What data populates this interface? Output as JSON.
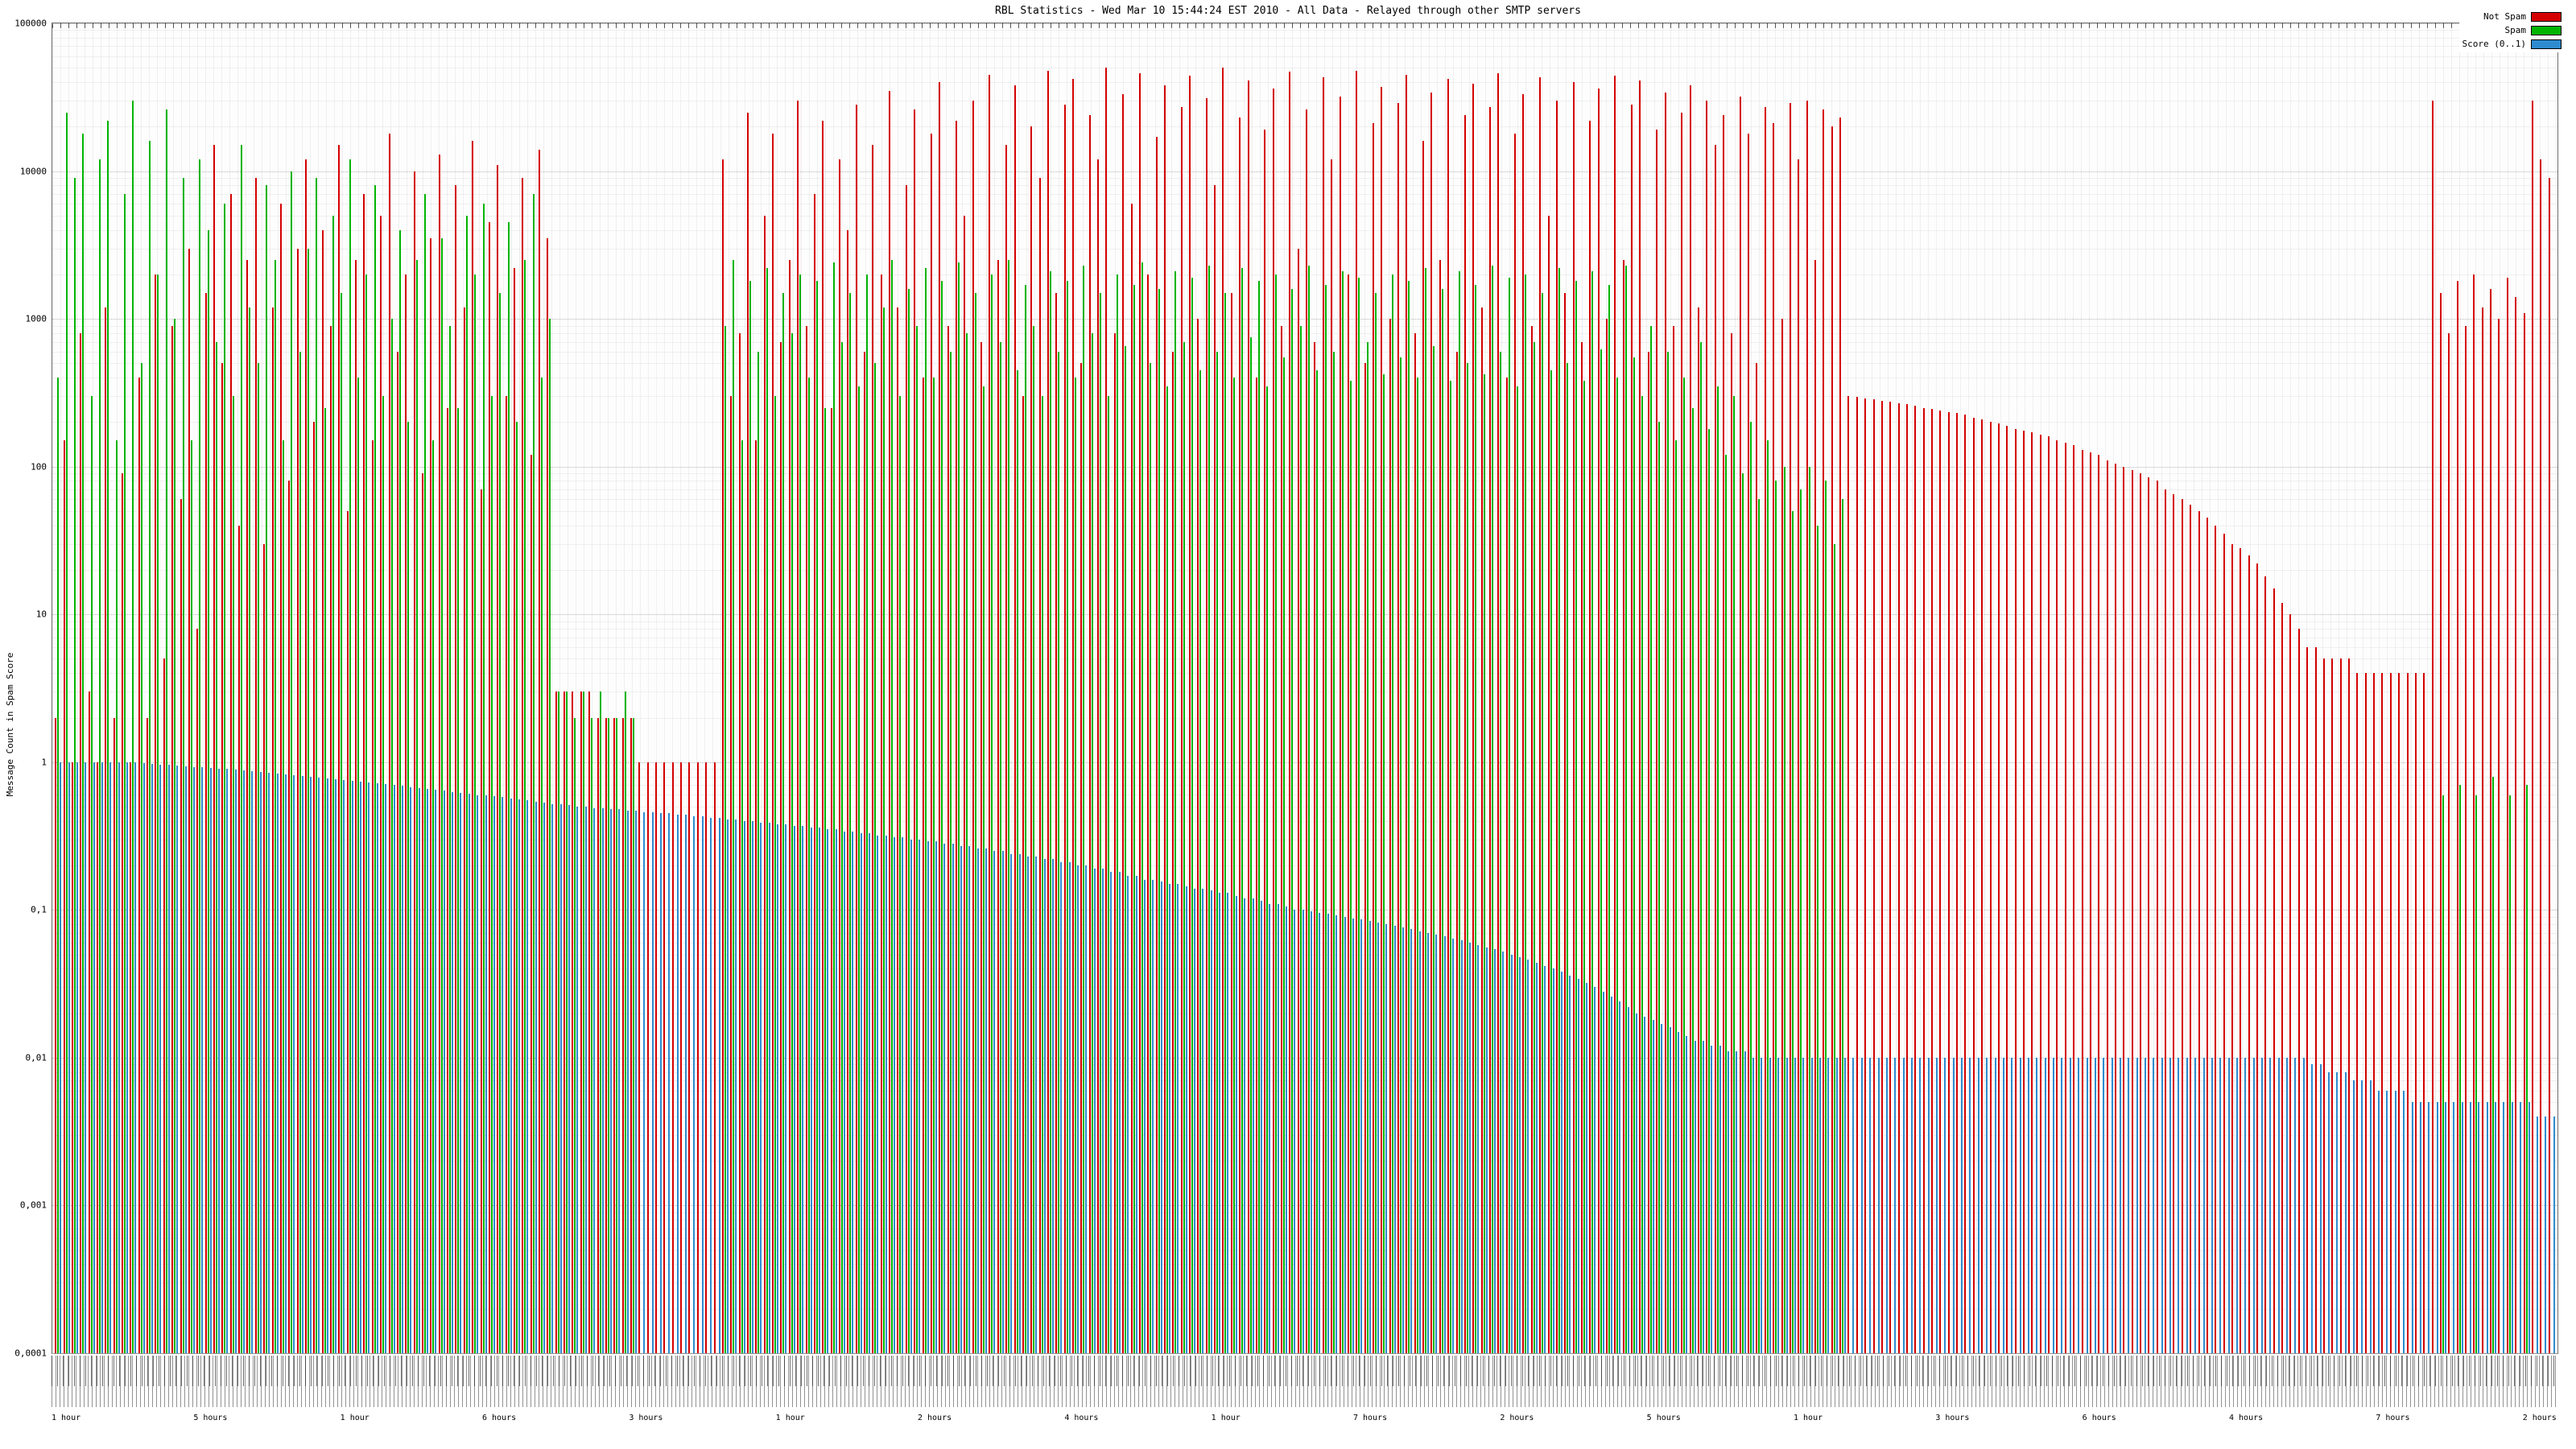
{
  "title": "RBL Statistics - Wed Mar 10 15:44:24 EST 2010 - All Data - Relayed through other SMTP servers",
  "legend": [
    {
      "label": "Not Spam",
      "color": "#d40000"
    },
    {
      "label": "Spam",
      "color": "#00b400"
    },
    {
      "label": "Score (0..1)",
      "color": "#2e8bd0"
    }
  ],
  "y_axis": {
    "label": "Message Count in Spam Score",
    "ticks": [
      "100000",
      "10000",
      "1000",
      "100",
      "10",
      "1",
      "0,1",
      "0,01",
      "0,001",
      "0,0001"
    ],
    "tick_values": [
      100000,
      10000,
      1000,
      100,
      10,
      1,
      0.1,
      0.01,
      0.001,
      0.0001
    ]
  },
  "x_axis": {
    "labels_note": "rotated per-RBL hostname labels (illegible at this scale)",
    "period_labels": [
      "1 hour",
      "5 hours",
      "1 hour",
      "6 hours",
      "3 hours",
      "1 hour",
      "2 hours",
      "4 hours",
      "1 hour",
      "7 hours",
      "2 hours",
      "5 hours",
      "1 hour",
      "3 hours",
      "6 hours",
      "4 hours",
      "7 hours",
      "2 hours"
    ]
  },
  "chart_data": {
    "type": "bar",
    "scale": "log",
    "title": "RBL Statistics - Wed Mar 10 15:44:24 EST 2010 - All Data - Relayed through other SMTP servers",
    "xlabel": "",
    "ylabel": "Message Count in Spam Score",
    "ylim": [
      0.0001,
      100000
    ],
    "grid": true,
    "legend_position": "top-right",
    "series": [
      {
        "name": "Not Spam",
        "color": "#d40000",
        "values": [
          2,
          150,
          1,
          800,
          3,
          1,
          1200,
          2,
          90,
          1,
          400,
          2,
          2000,
          5,
          900,
          60,
          3000,
          8,
          1500,
          15000,
          500,
          7000,
          40,
          2500,
          9000,
          30,
          1200,
          6000,
          80,
          3000,
          12000,
          200,
          4000,
          900,
          15000,
          50,
          2500,
          7000,
          150,
          5000,
          18000,
          600,
          2000,
          10000,
          90,
          3500,
          13000,
          250,
          8000,
          1200,
          16000,
          70,
          4500,
          11000,
          300,
          2200,
          9000,
          120,
          14000,
          3500,
          3,
          3,
          3,
          3,
          3,
          2,
          2,
          2,
          2,
          2,
          1,
          1,
          1,
          1,
          1,
          1,
          1,
          1,
          1,
          1,
          12000,
          300,
          800,
          25000,
          150,
          5000,
          18000,
          700,
          2500,
          30000,
          900,
          7000,
          22000,
          250,
          12000,
          4000,
          28000,
          600,
          15000,
          2000,
          35000,
          1200,
          8000,
          26000,
          400,
          18000,
          40000,
          900,
          22000,
          5000,
          30000,
          700,
          45000,
          2500,
          15000,
          38000,
          300,
          20000,
          9000,
          48000,
          1500,
          28000,
          42000,
          500,
          24000,
          12000,
          50000,
          800,
          33000,
          6000,
          46000,
          2000,
          17000,
          38000,
          600,
          27000,
          44000,
          1000,
          31000,
          8000,
          50000,
          1500,
          23000,
          41000,
          400,
          19000,
          36000,
          900,
          47000,
          3000,
          26000,
          700,
          43000,
          12000,
          32000,
          2000,
          48000,
          500,
          21000,
          37000,
          1000,
          29000,
          45000,
          800,
          16000,
          34000,
          2500,
          42000,
          600,
          24000,
          39000,
          1200,
          27000,
          46000,
          400,
          18000,
          33000,
          900,
          43000,
          5000,
          30000,
          1500,
          40000,
          700,
          22000,
          36000,
          1000,
          44000,
          2500,
          28000,
          41000,
          600,
          19000,
          34000,
          900,
          25000,
          38000,
          1200,
          30000,
          15000,
          24000,
          800,
          32000,
          18000,
          500,
          27000,
          21000,
          1000,
          29000,
          12000,
          30000,
          2500,
          26000,
          20000,
          23000,
          300,
          295,
          290,
          285,
          280,
          275,
          270,
          265,
          260,
          250,
          245,
          240,
          235,
          230,
          225,
          215,
          210,
          200,
          195,
          190,
          180,
          175,
          170,
          165,
          160,
          150,
          145,
          140,
          130,
          125,
          120,
          110,
          105,
          100,
          95,
          90,
          85,
          80,
          70,
          65,
          60,
          55,
          50,
          45,
          40,
          35,
          30,
          28,
          25,
          22,
          18,
          15,
          12,
          10,
          8,
          6,
          6,
          5,
          5,
          5,
          5,
          4,
          4,
          4,
          4,
          4,
          4,
          4,
          4,
          4,
          30000,
          1500,
          800,
          1800,
          900,
          2000,
          1200,
          1600,
          1000,
          1900,
          1400,
          1100,
          30000,
          12000,
          9000
        ]
      },
      {
        "name": "Spam",
        "color": "#00b400",
        "values": [
          400,
          25000,
          9000,
          18000,
          300,
          12000,
          22000,
          150,
          7000,
          30000,
          500,
          16000,
          2000,
          26000,
          1000,
          9000,
          150,
          12000,
          4000,
          700,
          6000,
          300,
          15000,
          1200,
          500,
          8000,
          2500,
          150,
          10000,
          600,
          3000,
          9000,
          250,
          5000,
          1500,
          12000,
          400,
          2000,
          8000,
          300,
          1000,
          4000,
          200,
          2500,
          7000,
          150,
          3500,
          900,
          250,
          5000,
          2000,
          6000,
          300,
          1500,
          4500,
          200,
          2500,
          7000,
          400,
          1000,
          3,
          3,
          2,
          3,
          2,
          3,
          2,
          2,
          3,
          2,
          0,
          0,
          0,
          0,
          0,
          0,
          0,
          0,
          0,
          0,
          900,
          2500,
          150,
          1800,
          600,
          2200,
          300,
          1500,
          800,
          2000,
          400,
          1800,
          250,
          2400,
          700,
          1500,
          350,
          2000,
          500,
          1200,
          2500,
          300,
          1600,
          900,
          2200,
          400,
          1800,
          600,
          2400,
          800,
          1500,
          350,
          2000,
          700,
          2500,
          450,
          1700,
          900,
          300,
          2100,
          600,
          1800,
          400,
          2300,
          800,
          1500,
          300,
          2000,
          650,
          1700,
          2400,
          500,
          1600,
          350,
          2100,
          700,
          1900,
          450,
          2300,
          600,
          1500,
          400,
          2200,
          750,
          1800,
          350,
          2000,
          550,
          1600,
          900,
          2300,
          450,
          1700,
          600,
          2100,
          380,
          1900,
          700,
          1500,
          420,
          2000,
          550,
          1800,
          400,
          2200,
          650,
          1600,
          380,
          2100,
          500,
          1700,
          420,
          2300,
          600,
          1900,
          350,
          2000,
          700,
          1500,
          450,
          2200,
          500,
          1800,
          380,
          2100,
          620,
          1700,
          400,
          2300,
          550,
          300,
          900,
          200,
          600,
          150,
          400,
          250,
          700,
          180,
          350,
          120,
          300,
          90,
          200,
          60,
          150,
          80,
          100,
          50,
          70,
          100,
          40,
          80,
          30,
          60,
          0,
          0,
          0,
          0,
          0,
          0,
          0,
          0,
          0,
          0,
          0,
          0,
          0,
          0,
          0,
          0,
          0,
          0,
          0,
          0,
          0,
          0,
          0,
          0,
          0,
          0,
          0,
          0,
          0,
          0,
          0,
          0,
          0,
          0,
          0,
          0,
          0,
          0,
          0,
          0,
          0,
          0,
          0,
          0,
          0,
          0,
          0,
          0,
          0,
          0,
          0,
          0,
          0,
          0,
          0,
          0,
          0,
          0,
          0,
          0,
          0,
          0,
          0,
          0,
          0,
          0,
          0,
          0,
          0,
          0,
          0,
          0.6,
          0,
          0.7,
          0,
          0.6,
          0,
          0.8,
          0,
          0.6,
          0,
          0.7,
          0,
          0,
          0
        ]
      },
      {
        "name": "Score (0..1)",
        "color": "#2e8bd0",
        "values": [
          1,
          1,
          1,
          1,
          1,
          1,
          1,
          1,
          1,
          1,
          0.98,
          0.97,
          0.96,
          0.96,
          0.95,
          0.94,
          0.93,
          0.92,
          0.91,
          0.9,
          0.9,
          0.89,
          0.88,
          0.87,
          0.86,
          0.85,
          0.84,
          0.83,
          0.82,
          0.81,
          0.8,
          0.79,
          0.78,
          0.77,
          0.76,
          0.75,
          0.74,
          0.73,
          0.72,
          0.71,
          0.7,
          0.69,
          0.68,
          0.67,
          0.66,
          0.65,
          0.64,
          0.63,
          0.62,
          0.61,
          0.6,
          0.6,
          0.59,
          0.58,
          0.57,
          0.56,
          0.55,
          0.54,
          0.53,
          0.52,
          0.52,
          0.51,
          0.5,
          0.5,
          0.49,
          0.49,
          0.48,
          0.48,
          0.47,
          0.47,
          0.46,
          0.46,
          0.45,
          0.45,
          0.44,
          0.44,
          0.43,
          0.43,
          0.42,
          0.42,
          0.41,
          0.41,
          0.4,
          0.4,
          0.39,
          0.39,
          0.38,
          0.38,
          0.37,
          0.37,
          0.36,
          0.36,
          0.35,
          0.35,
          0.34,
          0.34,
          0.33,
          0.33,
          0.32,
          0.32,
          0.31,
          0.31,
          0.3,
          0.3,
          0.29,
          0.29,
          0.28,
          0.28,
          0.27,
          0.27,
          0.26,
          0.26,
          0.25,
          0.25,
          0.24,
          0.24,
          0.23,
          0.23,
          0.22,
          0.22,
          0.21,
          0.21,
          0.2,
          0.2,
          0.19,
          0.19,
          0.18,
          0.18,
          0.17,
          0.17,
          0.16,
          0.16,
          0.155,
          0.15,
          0.15,
          0.145,
          0.14,
          0.14,
          0.135,
          0.13,
          0.13,
          0.125,
          0.12,
          0.12,
          0.115,
          0.11,
          0.11,
          0.105,
          0.1,
          0.1,
          0.098,
          0.096,
          0.094,
          0.092,
          0.09,
          0.088,
          0.086,
          0.084,
          0.082,
          0.08,
          0.078,
          0.076,
          0.074,
          0.072,
          0.07,
          0.068,
          0.066,
          0.064,
          0.062,
          0.06,
          0.058,
          0.056,
          0.054,
          0.052,
          0.05,
          0.048,
          0.046,
          0.044,
          0.042,
          0.04,
          0.038,
          0.036,
          0.034,
          0.032,
          0.03,
          0.028,
          0.026,
          0.024,
          0.022,
          0.02,
          0.019,
          0.018,
          0.017,
          0.016,
          0.015,
          0.014,
          0.013,
          0.013,
          0.012,
          0.012,
          0.011,
          0.011,
          0.011,
          0.01,
          0.01,
          0.01,
          0.01,
          0.01,
          0.01,
          0.01,
          0.01,
          0.01,
          0.01,
          0.01,
          0.01,
          0.01,
          0.01,
          0.01,
          0.01,
          0.01,
          0.01,
          0.01,
          0.01,
          0.01,
          0.01,
          0.01,
          0.01,
          0.01,
          0.01,
          0.01,
          0.01,
          0.01,
          0.01,
          0.01,
          0.01,
          0.01,
          0.01,
          0.01,
          0.01,
          0.01,
          0.01,
          0.01,
          0.01,
          0.01,
          0.01,
          0.01,
          0.01,
          0.01,
          0.01,
          0.01,
          0.01,
          0.01,
          0.01,
          0.01,
          0.01,
          0.01,
          0.01,
          0.01,
          0.01,
          0.01,
          0.01,
          0.01,
          0.01,
          0.01,
          0.01,
          0.01,
          0.01,
          0.01,
          0.01,
          0.01,
          0.009,
          0.009,
          0.008,
          0.008,
          0.008,
          0.007,
          0.007,
          0.007,
          0.006,
          0.006,
          0.006,
          0.006,
          0.005,
          0.005,
          0.005,
          0.005,
          0.005,
          0.005,
          0.005,
          0.005,
          0.005,
          0.005,
          0.005,
          0.005,
          0.005,
          0.005,
          0.005,
          0.004,
          0.004,
          0.004
        ]
      }
    ]
  }
}
